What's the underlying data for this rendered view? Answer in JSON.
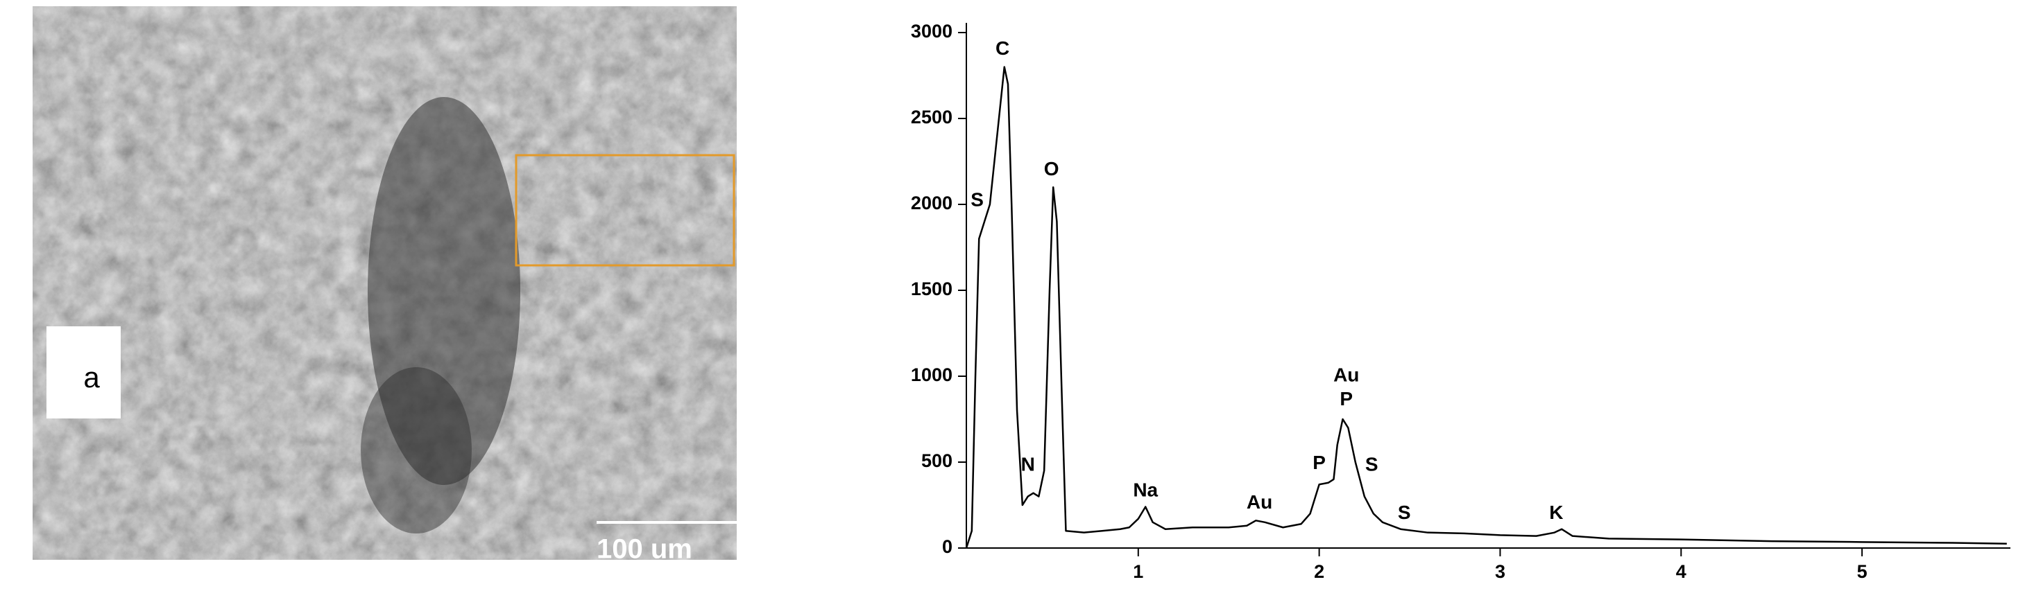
{
  "image": {
    "panel_label": "a",
    "scale_bar": "100 um"
  },
  "chart_data": {
    "type": "line",
    "x": [
      0.05,
      0.08,
      0.1,
      0.12,
      0.15,
      0.18,
      0.2,
      0.23,
      0.26,
      0.28,
      0.3,
      0.33,
      0.36,
      0.39,
      0.42,
      0.45,
      0.48,
      0.51,
      0.53,
      0.55,
      0.58,
      0.6,
      0.7,
      0.8,
      0.9,
      0.95,
      1.0,
      1.04,
      1.08,
      1.15,
      1.3,
      1.5,
      1.6,
      1.65,
      1.7,
      1.8,
      1.9,
      1.95,
      2.0,
      2.05,
      2.08,
      2.1,
      2.13,
      2.16,
      2.2,
      2.25,
      2.3,
      2.35,
      2.45,
      2.6,
      2.8,
      3.0,
      3.2,
      3.3,
      3.34,
      3.4,
      3.6,
      4.0,
      4.5,
      5.0,
      5.5,
      5.8
    ],
    "series": [
      {
        "color": "#000000",
        "values": [
          0,
          100,
          1000,
          1800,
          1900,
          2000,
          2200,
          2500,
          2800,
          2700,
          2000,
          800,
          250,
          300,
          320,
          300,
          450,
          1500,
          2100,
          1900,
          800,
          100,
          90,
          100,
          110,
          120,
          170,
          240,
          150,
          110,
          120,
          120,
          130,
          160,
          150,
          120,
          140,
          200,
          370,
          380,
          400,
          600,
          750,
          700,
          500,
          300,
          200,
          150,
          110,
          90,
          85,
          75,
          70,
          90,
          110,
          70,
          55,
          50,
          40,
          35,
          30,
          25
        ]
      }
    ],
    "xlim": [
      0.05,
      5.82
    ],
    "xticks": [
      1,
      2,
      3,
      4,
      5
    ],
    "ylim": [
      0,
      3000
    ],
    "yticks": [
      0,
      500,
      1000,
      1500,
      2000,
      2500,
      3000
    ],
    "annotations": [
      {
        "text": "S",
        "x": 0.11,
        "y": 2020
      },
      {
        "text": "C",
        "x": 0.25,
        "y": 2900
      },
      {
        "text": "O",
        "x": 0.52,
        "y": 2200
      },
      {
        "text": "N",
        "x": 0.39,
        "y": 480
      },
      {
        "text": "Na",
        "x": 1.04,
        "y": 330
      },
      {
        "text": "Au",
        "x": 1.67,
        "y": 260
      },
      {
        "text": "P",
        "x": 2.0,
        "y": 490
      },
      {
        "text": "Au",
        "x": 2.15,
        "y": 1000
      },
      {
        "text": "P",
        "x": 2.15,
        "y": 860
      },
      {
        "text": "S",
        "x": 2.29,
        "y": 480
      },
      {
        "text": "S",
        "x": 2.47,
        "y": 200
      },
      {
        "text": "K",
        "x": 3.31,
        "y": 200
      }
    ]
  }
}
